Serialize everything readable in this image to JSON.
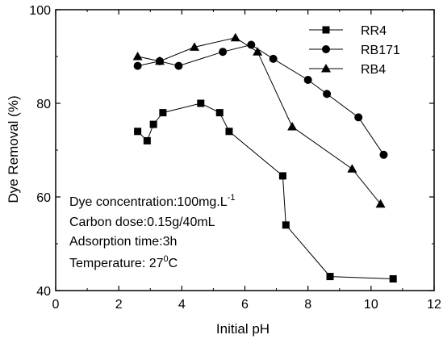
{
  "chart_data": {
    "type": "line",
    "xlabel": "Initial pH",
    "ylabel": "Dye Removal (%)",
    "xlim": [
      0,
      12
    ],
    "ylim": [
      40,
      100
    ],
    "x_ticks": [
      "0",
      "2",
      "4",
      "6",
      "8",
      "10",
      "12"
    ],
    "y_ticks": [
      "40",
      "60",
      "80",
      "100"
    ],
    "x_tick_values": [
      0,
      2,
      4,
      6,
      8,
      10,
      12
    ],
    "y_tick_values": [
      40,
      60,
      80,
      100
    ],
    "grid": false,
    "legend_position": "top-right",
    "series": [
      {
        "name": "RR4",
        "marker": "square",
        "x": [
          2.6,
          2.9,
          3.1,
          3.4,
          4.6,
          5.2,
          5.5,
          7.2,
          7.3,
          8.7,
          10.7
        ],
        "y": [
          74,
          72,
          75.5,
          78,
          80,
          78,
          74,
          64.5,
          54,
          43,
          42.5
        ]
      },
      {
        "name": "RB171",
        "marker": "circle",
        "x": [
          2.6,
          3.3,
          3.9,
          5.3,
          6.2,
          6.9,
          8.0,
          8.6,
          9.6,
          10.4
        ],
        "y": [
          88,
          89,
          88,
          91,
          92.5,
          89.5,
          85,
          82,
          77,
          69
        ]
      },
      {
        "name": "RB4",
        "marker": "triangle",
        "x": [
          2.6,
          3.3,
          4.4,
          5.7,
          6.4,
          7.5,
          9.4,
          10.3
        ],
        "y": [
          90,
          89,
          92,
          94,
          91,
          75,
          66,
          58.5
        ]
      }
    ],
    "annotations": {
      "concentration": "Dye concentration:100mg.L",
      "concentration_sup": "-1",
      "carbon": "Carbon dose:0.15g/40mL",
      "time": "Adsorption time:3h",
      "temp_prefix": "Temperature: 27",
      "temp_sup": "0",
      "temp_suffix": "C"
    }
  }
}
